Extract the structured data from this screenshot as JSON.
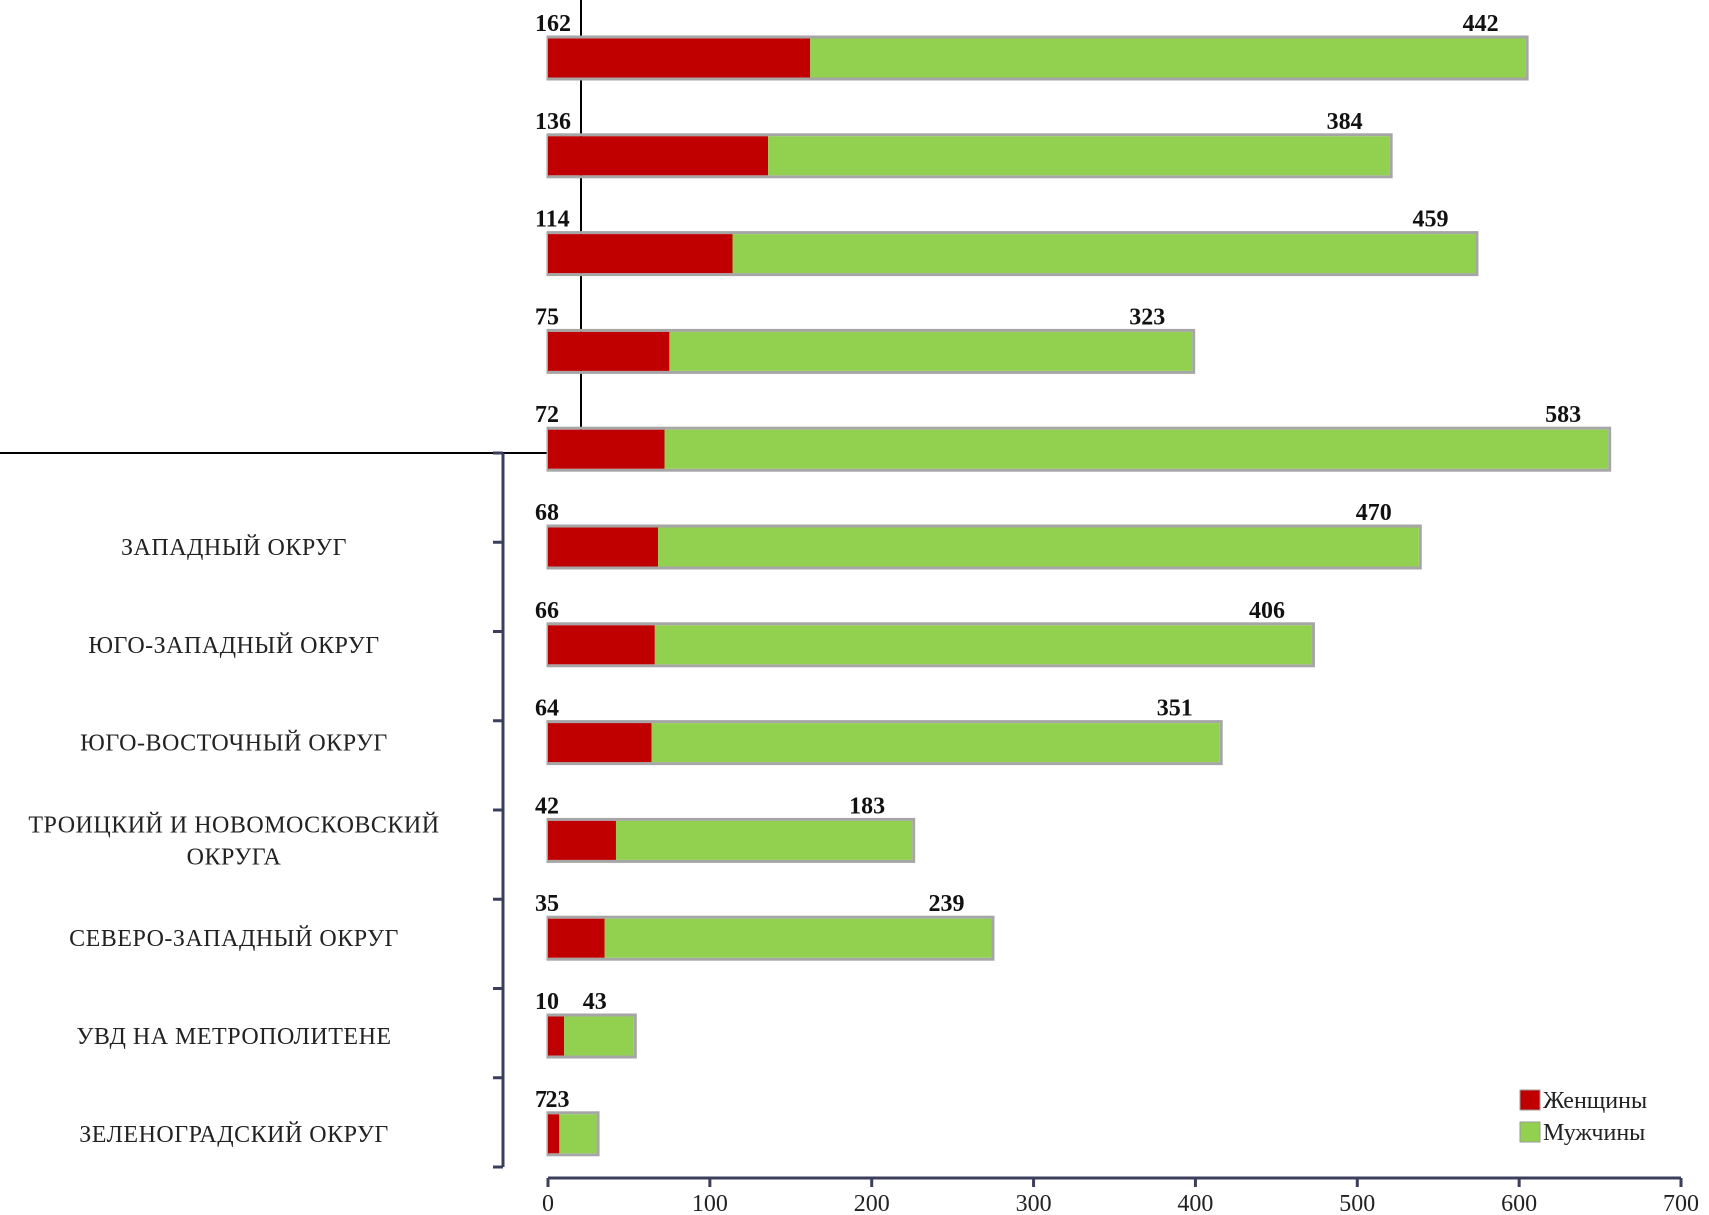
{
  "chart_data": {
    "type": "bar",
    "orientation": "horizontal",
    "stacked": true,
    "categories": [
      "",
      "",
      "",
      "",
      "",
      "ЗАПАДНЫЙ ОКРУГ",
      "ЮГО-ЗАПАДНЫЙ ОКРУГ",
      "ЮГО-ВОСТОЧНЫЙ ОКРУГ",
      "ТРОИЦКИЙ И НОВОМОСКОВСКИЙ ОКРУГА",
      "СЕВЕРО-ЗАПАДНЫЙ ОКРУГ",
      "УВД НА МЕТРОПОЛИТЕНЕ",
      "ЗЕЛЕНОГРАДСКИЙ ОКРУГ"
    ],
    "category_lines": [
      [],
      [],
      [],
      [],
      [],
      [
        "ЗАПАДНЫЙ ОКРУГ"
      ],
      [
        "ЮГО-ЗАПАДНЫЙ ОКРУГ"
      ],
      [
        "ЮГО-ВОСТОЧНЫЙ ОКРУГ"
      ],
      [
        "ТРОИЦКИЙ И НОВОМОСКОВСКИЙ",
        "ОКРУГА"
      ],
      [
        "СЕВЕРО-ЗАПАДНЫЙ ОКРУГ"
      ],
      [
        "УВД НА МЕТРОПОЛИТЕНЕ"
      ],
      [
        "ЗЕЛЕНОГРАДСКИЙ ОКРУГ"
      ]
    ],
    "series": [
      {
        "name": "Женщины",
        "color": "#c00000",
        "values": [
          162,
          136,
          114,
          75,
          72,
          68,
          66,
          64,
          42,
          35,
          10,
          7
        ]
      },
      {
        "name": "Мужчины",
        "color": "#92d050",
        "values": [
          442,
          384,
          459,
          323,
          583,
          470,
          406,
          351,
          183,
          239,
          43,
          23
        ]
      }
    ],
    "xlim": [
      0,
      700
    ],
    "xticks": [
      "0",
      "100",
      "200",
      "300",
      "400",
      "500",
      "600",
      "700"
    ],
    "legend_position": "bottom-right",
    "title": "",
    "xlabel": "",
    "ylabel": ""
  }
}
